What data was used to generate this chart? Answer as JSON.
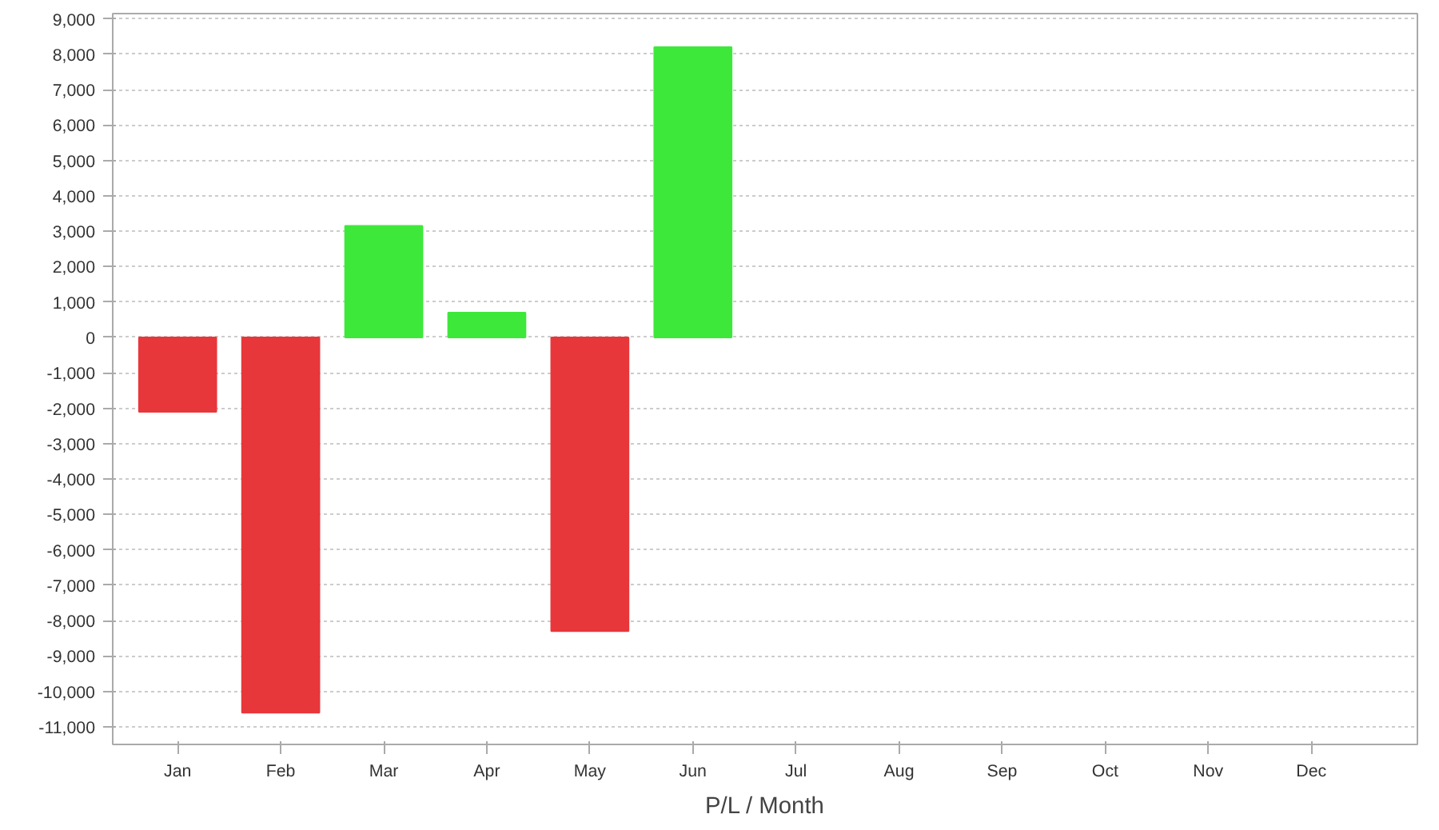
{
  "chart_data": {
    "type": "bar",
    "xlabel": "P/L / Month",
    "categories": [
      "Jan",
      "Feb",
      "Mar",
      "Apr",
      "May",
      "Jun",
      "Jul",
      "Aug",
      "Sep",
      "Oct",
      "Nov",
      "Dec"
    ],
    "values": [
      -2100,
      -10600,
      3150,
      700,
      -8300,
      8200,
      null,
      null,
      null,
      null,
      null,
      null
    ],
    "colors": [
      "#e8373b",
      "#e8373b",
      "#3ee83a",
      "#3ee83a",
      "#e8373b",
      "#3ee83a",
      "#3ee83a",
      "#3ee83a",
      "#3ee83a",
      "#3ee83a",
      "#3ee83a",
      "#3ee83a"
    ],
    "ylim": [
      -11500,
      9150
    ],
    "yticks": [
      {
        "value": -11000,
        "label": "-11,000"
      },
      {
        "value": -10000,
        "label": "-10,000"
      },
      {
        "value": -9000,
        "label": "-9,000"
      },
      {
        "value": -8000,
        "label": "-8,000"
      },
      {
        "value": -7000,
        "label": "-7,000"
      },
      {
        "value": -6000,
        "label": "-6,000"
      },
      {
        "value": -5000,
        "label": "-5,000"
      },
      {
        "value": -4000,
        "label": "-4,000"
      },
      {
        "value": -3000,
        "label": "-3,000"
      },
      {
        "value": -2000,
        "label": "-2,000"
      },
      {
        "value": -1000,
        "label": "-1,000"
      },
      0,
      {
        "value": 1000,
        "label": "1,000"
      },
      {
        "value": 2000,
        "label": "2,000"
      },
      {
        "value": 3000,
        "label": "3,000"
      },
      {
        "value": 4000,
        "label": "4,000"
      },
      {
        "value": 5000,
        "label": "5,000"
      },
      {
        "value": 6000,
        "label": "6,000"
      },
      {
        "value": 7000,
        "label": "7,000"
      },
      {
        "value": 8000,
        "label": "8,000"
      },
      {
        "value": 9000,
        "label": "9,000"
      }
    ],
    "grid": "y"
  }
}
